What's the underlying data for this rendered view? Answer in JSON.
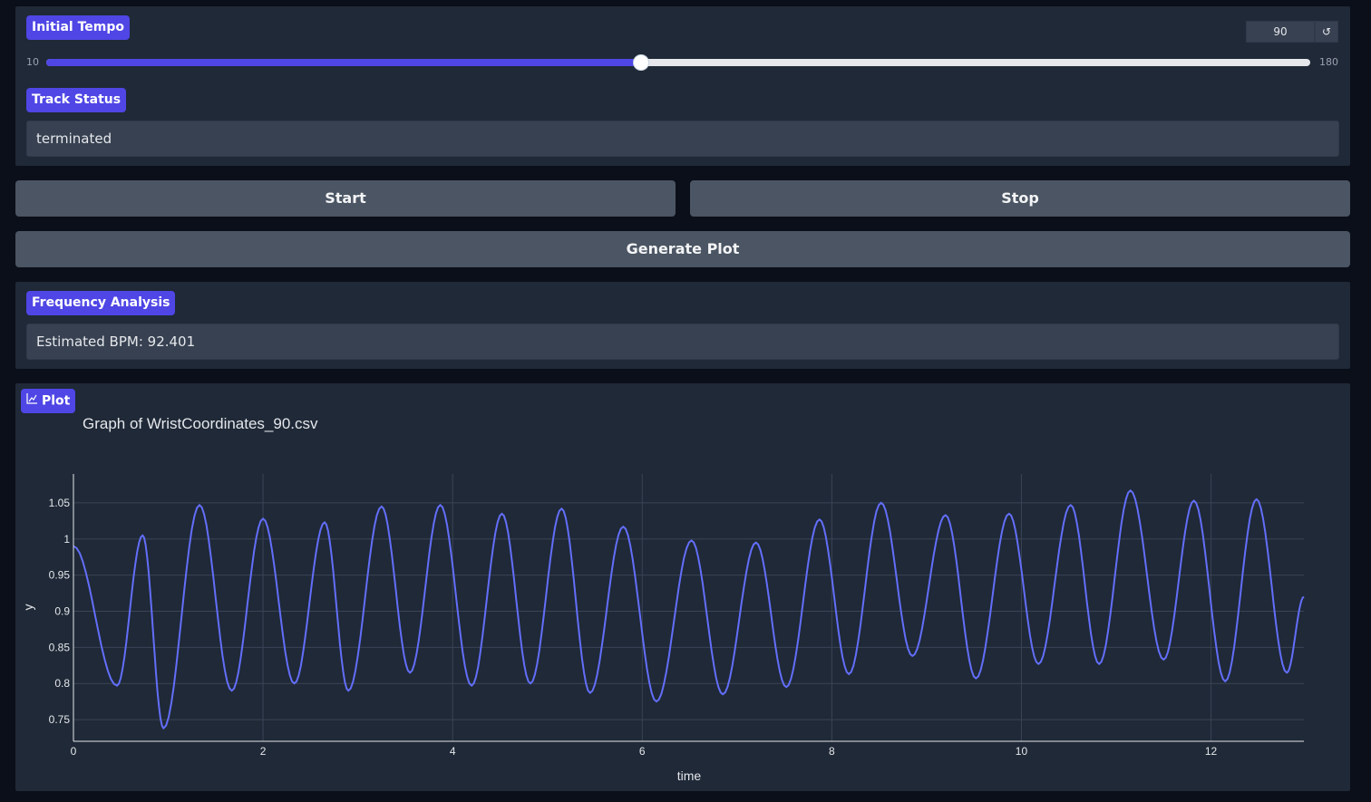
{
  "tempo": {
    "label": "Initial Tempo",
    "value": "90",
    "min_label": "10",
    "max_label": "180",
    "min": 10,
    "max": 180,
    "current": 90,
    "reset_glyph": "↺"
  },
  "track_status": {
    "label": "Track Status",
    "value": "terminated"
  },
  "buttons": {
    "start": "Start",
    "stop": "Stop",
    "generate": "Generate Plot"
  },
  "frequency": {
    "label": "Frequency Analysis",
    "value": "Estimated BPM: 92.401"
  },
  "plot": {
    "label": "Plot",
    "icon": "chart-icon"
  },
  "colors": {
    "accent": "#4f46e5",
    "line": "#636efa"
  },
  "chart_data": {
    "type": "line",
    "title": "Graph of WristCoordinates_90.csv",
    "xlabel": "time",
    "ylabel": "y",
    "xlim": [
      0,
      12.98
    ],
    "ylim": [
      0.72,
      1.09
    ],
    "x_ticks": [
      0,
      2,
      4,
      6,
      8,
      10,
      12
    ],
    "x_tick_labels": [
      "0",
      "2",
      "4",
      "6",
      "8",
      "10",
      "12"
    ],
    "y_ticks": [
      0.75,
      0.8,
      0.85,
      0.9,
      0.95,
      1,
      1.05
    ],
    "y_tick_labels": [
      "0.75",
      "0.8",
      "0.85",
      "0.9",
      "0.95",
      "1",
      "1.05"
    ],
    "grid": true,
    "legend": "none",
    "series": [
      {
        "extrema": [
          [
            0.0,
            0.99
          ],
          [
            0.46,
            0.797
          ],
          [
            0.73,
            1.005
          ],
          [
            0.95,
            0.738
          ],
          [
            1.33,
            1.047
          ],
          [
            1.67,
            0.79
          ],
          [
            2.0,
            1.028
          ],
          [
            2.33,
            0.8
          ],
          [
            2.65,
            1.023
          ],
          [
            2.9,
            0.79
          ],
          [
            3.25,
            1.045
          ],
          [
            3.55,
            0.815
          ],
          [
            3.87,
            1.047
          ],
          [
            4.2,
            0.797
          ],
          [
            4.52,
            1.035
          ],
          [
            4.82,
            0.8
          ],
          [
            5.15,
            1.042
          ],
          [
            5.45,
            0.787
          ],
          [
            5.8,
            1.017
          ],
          [
            6.15,
            0.775
          ],
          [
            6.52,
            0.998
          ],
          [
            6.85,
            0.785
          ],
          [
            7.2,
            0.995
          ],
          [
            7.52,
            0.795
          ],
          [
            7.87,
            1.027
          ],
          [
            8.18,
            0.813
          ],
          [
            8.52,
            1.05
          ],
          [
            8.85,
            0.838
          ],
          [
            9.2,
            1.033
          ],
          [
            9.52,
            0.807
          ],
          [
            9.87,
            1.035
          ],
          [
            10.18,
            0.827
          ],
          [
            10.52,
            1.047
          ],
          [
            10.82,
            0.827
          ],
          [
            11.15,
            1.067
          ],
          [
            11.5,
            0.833
          ],
          [
            11.82,
            1.053
          ],
          [
            12.15,
            0.803
          ],
          [
            12.48,
            1.055
          ],
          [
            12.8,
            0.815
          ],
          [
            12.98,
            0.92
          ]
        ]
      }
    ]
  }
}
